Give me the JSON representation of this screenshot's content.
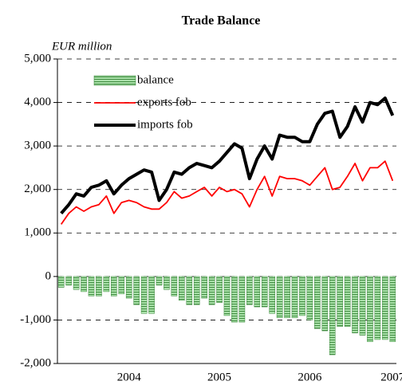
{
  "chart_data": {
    "type": "bar-line",
    "title": "Trade Balance",
    "ylabel": "EUR million",
    "categories": [
      null,
      null,
      null,
      null,
      null,
      null,
      null,
      null,
      null,
      "2004",
      null,
      null,
      null,
      null,
      null,
      null,
      null,
      null,
      null,
      null,
      null,
      "2005",
      null,
      null,
      null,
      null,
      null,
      null,
      null,
      null,
      null,
      null,
      null,
      "2006",
      null,
      null,
      null,
      null,
      null,
      null,
      null,
      null,
      null,
      null,
      "2007"
    ],
    "series": [
      {
        "name": "balance",
        "type": "bar",
        "color": "#a8e0a8",
        "values": [
          -250,
          -200,
          -300,
          -350,
          -450,
          -450,
          -350,
          -450,
          -400,
          -500,
          -650,
          -850,
          -850,
          -200,
          -300,
          -450,
          -550,
          -650,
          -650,
          -500,
          -650,
          -600,
          -900,
          -1050,
          -1050,
          -650,
          -700,
          -700,
          -850,
          -950,
          -950,
          -950,
          -900,
          -1000,
          -1200,
          -1250,
          -1800,
          -1150,
          -1150,
          -1300,
          -1350,
          -1500,
          -1450,
          -1450,
          -1500
        ]
      },
      {
        "name": "exports fob",
        "type": "line",
        "color": "#ff0000",
        "values": [
          1200,
          1450,
          1600,
          1500,
          1600,
          1650,
          1850,
          1450,
          1700,
          1750,
          1700,
          1600,
          1550,
          1550,
          1700,
          1950,
          1800,
          1850,
          1950,
          2050,
          1850,
          2050,
          1950,
          2000,
          1900,
          1600,
          2000,
          2300,
          1850,
          2300,
          2250,
          2250,
          2200,
          2100,
          2300,
          2500,
          2000,
          2050,
          2300,
          2600,
          2200,
          2500,
          2500,
          2650,
          2200
        ]
      },
      {
        "name": "imports fob",
        "type": "line",
        "color": "#000000",
        "values": [
          1450,
          1650,
          1900,
          1850,
          2050,
          2100,
          2200,
          1900,
          2100,
          2250,
          2350,
          2450,
          2400,
          1750,
          2000,
          2400,
          2350,
          2500,
          2600,
          2550,
          2500,
          2650,
          2850,
          3050,
          2950,
          2250,
          2700,
          3000,
          2700,
          3250,
          3200,
          3200,
          3100,
          3100,
          3500,
          3750,
          3800,
          3200,
          3450,
          3900,
          3550,
          4000,
          3950,
          4100,
          3700
        ]
      }
    ],
    "ylim": [
      -2000,
      5000
    ],
    "yticks": [
      {
        "value": -2000,
        "label": "-2,000"
      },
      {
        "value": -1000,
        "label": "-1,000"
      },
      0,
      {
        "value": 1000,
        "label": "1,000"
      },
      {
        "value": 2000,
        "label": "2,000"
      },
      {
        "value": 3000,
        "label": "3,000"
      },
      {
        "value": 4000,
        "label": "4,000"
      },
      {
        "value": 5000,
        "label": "5,000"
      }
    ],
    "grid": true,
    "legend": "upper left"
  }
}
